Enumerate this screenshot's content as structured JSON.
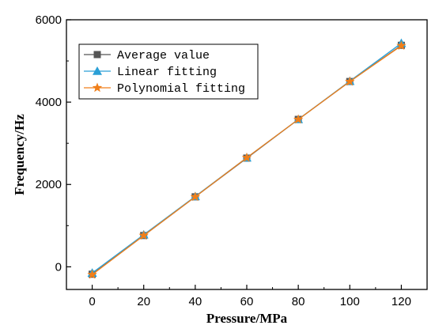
{
  "chart_data": {
    "type": "line",
    "title": "",
    "xlabel": "Pressure/MPa",
    "ylabel": "Frequency/Hz",
    "x": [
      0,
      20,
      40,
      60,
      80,
      100,
      120
    ],
    "xlim": [
      -10,
      130
    ],
    "ylim": [
      -550,
      6000
    ],
    "xticks": [
      0,
      20,
      40,
      60,
      80,
      100,
      120
    ],
    "yticks": [
      0,
      2000,
      4000,
      6000
    ],
    "grid": false,
    "legend_position": "top-left",
    "series": [
      {
        "name": "Average value",
        "values": [
          -180,
          760,
          1700,
          2640,
          3580,
          4500,
          5380
        ],
        "color": "#555555",
        "marker": "square"
      },
      {
        "name": "Linear fitting",
        "values": [
          -150,
          780,
          1710,
          2650,
          3580,
          4510,
          5430
        ],
        "color": "#2a9fd6",
        "marker": "triangle"
      },
      {
        "name": "Polynomial fitting",
        "values": [
          -190,
          760,
          1700,
          2650,
          3580,
          4500,
          5370
        ],
        "color": "#f07f1a",
        "marker": "star"
      }
    ]
  }
}
